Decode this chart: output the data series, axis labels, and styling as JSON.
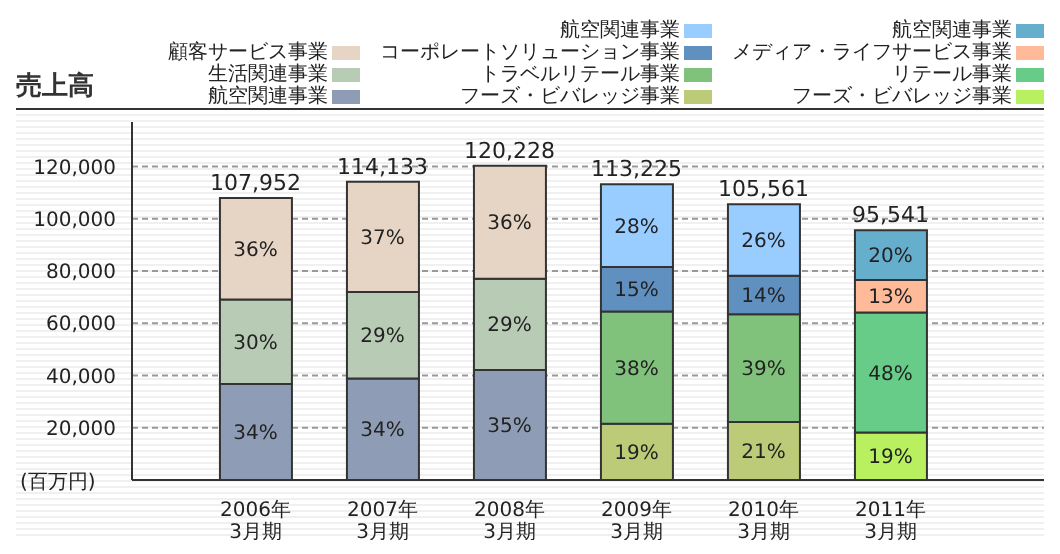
{
  "chart_data": {
    "type": "bar",
    "stacked": true,
    "title": "売上高",
    "ylabel": "(百万円)",
    "categories": [
      "2006年\n3月期",
      "2007年\n3月期",
      "2008年\n3月期",
      "2009年\n3月期",
      "2010年\n3月期",
      "2011年\n3月期"
    ],
    "series": [
      {
        "name": "航空関連事業",
        "color": "#8e9db5",
        "values": [
          36700,
          38800,
          42100,
          null,
          null,
          null
        ]
      },
      {
        "name": "生活関連事業",
        "color": "#b8cbb5",
        "values": [
          32400,
          33100,
          34900,
          null,
          null,
          null
        ]
      },
      {
        "name": "顧客サービス事業",
        "color": "#e6d5c5",
        "values": [
          38852,
          42233,
          43228,
          null,
          null,
          null
        ]
      },
      {
        "name": "フーズ・ビバレッジ事業",
        "color": "#bccb78",
        "values": [
          null,
          null,
          null,
          21500,
          22200,
          null
        ]
      },
      {
        "name": "トラベルリテール事業",
        "color": "#80c27c",
        "values": [
          null,
          null,
          null,
          43000,
          41200,
          null
        ]
      },
      {
        "name": "コーポレートソリューション事業",
        "color": "#6090c0",
        "values": [
          null,
          null,
          null,
          17000,
          14800,
          null
        ]
      },
      {
        "name": "航空関連事業",
        "color": "#99ccff",
        "values": [
          null,
          null,
          null,
          31725,
          27361,
          null
        ]
      },
      {
        "name": "フーズ・ビバレッジ事業",
        "color": "#b8f060",
        "values": [
          null,
          null,
          null,
          null,
          null,
          18200
        ]
      },
      {
        "name": "リテール事業",
        "color": "#66cc88",
        "values": [
          null,
          null,
          null,
          null,
          null,
          45900
        ]
      },
      {
        "name": "メディア・ライフサービス事業",
        "color": "#ffbb99",
        "values": [
          null,
          null,
          null,
          null,
          null,
          12400
        ]
      },
      {
        "name": "航空関連事業",
        "color": "#66afcc",
        "values": [
          null,
          null,
          null,
          null,
          null,
          19041
        ]
      }
    ],
    "annotations": [
      "34%",
      "30%",
      "36%",
      "34%",
      "29%",
      "37%",
      "35%",
      "29%",
      "36%",
      "19%",
      "38%",
      "15%",
      "28%",
      "21%",
      "39%",
      "14%",
      "26%",
      "19%",
      "48%",
      "13%",
      "20%"
    ],
    "totals": [
      "107,952",
      "114,133",
      "120,228",
      "113,225",
      "105,561",
      "95,541"
    ],
    "ylim": [
      0,
      137000
    ],
    "yticks": [
      {
        "value": 20000,
        "label": "20,000"
      },
      {
        "value": 40000,
        "label": "40,000"
      },
      {
        "value": 60000,
        "label": "60,000"
      },
      {
        "value": 80000,
        "label": "80,000"
      },
      {
        "value": 100000,
        "label": "100,000"
      },
      {
        "value": 120000,
        "label": "120,000"
      }
    ],
    "grid": "y",
    "legend": "top right"
  }
}
